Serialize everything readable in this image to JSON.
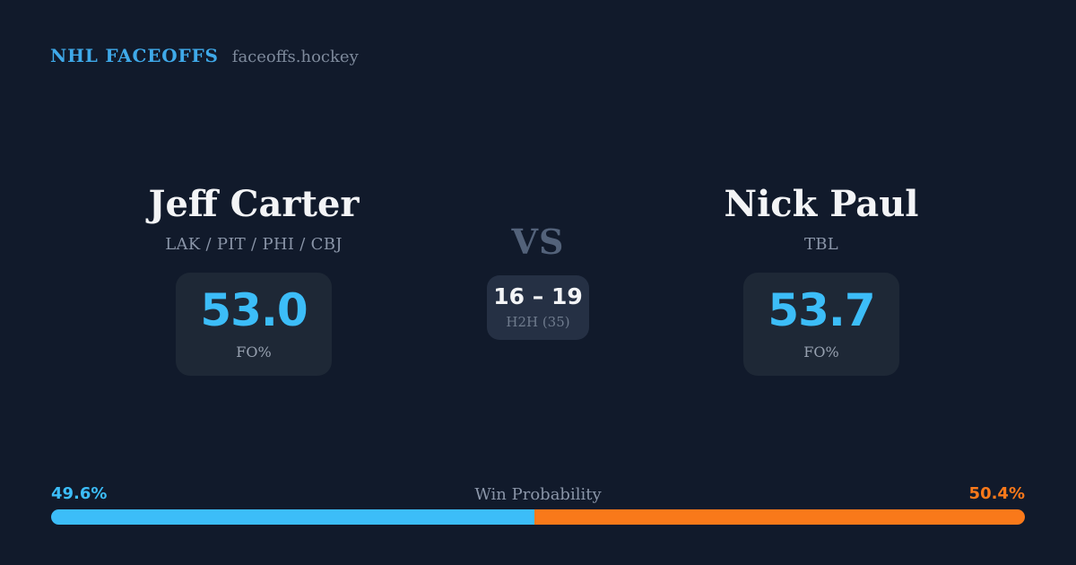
{
  "header": {
    "title": "NHL FACEOFFS",
    "site": "faceoffs.hockey"
  },
  "matchup": {
    "left_player": {
      "name": "Jeff Carter",
      "teams": "LAK / PIT / PHI / CBJ",
      "fo_value": "53.0",
      "fo_label": "FO%"
    },
    "right_player": {
      "name": "Nick Paul",
      "teams": "TBL",
      "fo_value": "53.7",
      "fo_label": "FO%"
    },
    "center": {
      "vs_label": "VS",
      "h2h_score": "16 – 19",
      "h2h_label": "H2H (35)"
    }
  },
  "win_probability": {
    "label": "Win Probability",
    "left_pct_label": "49.6%",
    "right_pct_label": "50.4%",
    "left_value": 49.6,
    "right_value": 50.4,
    "left_bar_style": "width:49.6%"
  },
  "colors": {
    "background": "#111a2b",
    "player_card": "#1e2836",
    "center_card": "#253044",
    "accent_blue": "#3cbdf8",
    "accent_orange": "#f9791a",
    "title_blue": "#3fa9e9",
    "muted_text": "#8a95a8",
    "white_text": "#f3f4f6"
  }
}
